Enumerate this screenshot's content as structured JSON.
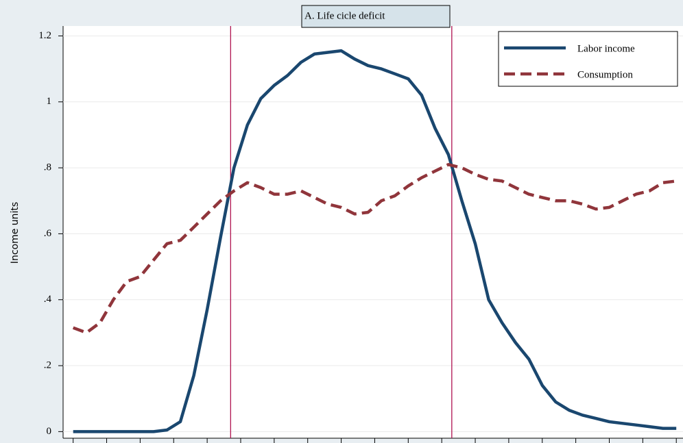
{
  "chart_data": {
    "type": "line",
    "title": "A. Life cicle deficit",
    "ylabel": "Income units",
    "x": [
      0,
      2,
      4,
      6,
      8,
      10,
      12,
      14,
      16,
      18,
      20,
      22,
      24,
      26,
      28,
      30,
      32,
      34,
      36,
      38,
      40,
      42,
      44,
      46,
      48,
      50,
      52,
      54,
      56,
      58,
      60,
      62,
      64,
      66,
      68,
      70,
      72,
      74,
      76,
      78,
      80,
      82,
      84,
      86,
      88,
      90
    ],
    "series": [
      {
        "name": "Labor income",
        "color": "#1a476f",
        "dash": false,
        "values": [
          0,
          0,
          0,
          0,
          0,
          0,
          0,
          0.005,
          0.03,
          0.17,
          0.37,
          0.59,
          0.8,
          0.93,
          1.01,
          1.05,
          1.08,
          1.12,
          1.145,
          1.15,
          1.155,
          1.13,
          1.11,
          1.1,
          1.085,
          1.07,
          1.02,
          0.92,
          0.84,
          0.7,
          0.57,
          0.4,
          0.33,
          0.27,
          0.22,
          0.14,
          0.09,
          0.065,
          0.05,
          0.04,
          0.03,
          0.025,
          0.02,
          0.015,
          0.01,
          0.01
        ]
      },
      {
        "name": "Consumption",
        "color": "#90353b",
        "dash": true,
        "values": [
          0.315,
          0.3,
          0.33,
          0.4,
          0.455,
          0.47,
          0.52,
          0.57,
          0.58,
          0.62,
          0.66,
          0.7,
          0.73,
          0.755,
          0.74,
          0.72,
          0.72,
          0.73,
          0.71,
          0.69,
          0.68,
          0.66,
          0.665,
          0.7,
          0.715,
          0.745,
          0.77,
          0.79,
          0.81,
          0.8,
          0.78,
          0.765,
          0.76,
          0.74,
          0.72,
          0.71,
          0.7,
          0.7,
          0.69,
          0.675,
          0.68,
          0.7,
          0.72,
          0.73,
          0.755,
          0.76
        ]
      }
    ],
    "xlines": [
      23.5,
      56.5
    ],
    "xline_color": "#b0114f",
    "xlim": [
      -1.5,
      91
    ],
    "xticks": [
      0,
      5,
      10,
      15,
      20,
      25,
      30,
      35,
      40,
      45,
      50,
      55,
      60,
      65,
      70,
      75,
      80,
      85,
      90
    ],
    "ylim": [
      -0.02,
      1.23
    ],
    "yticks": [
      0,
      {
        "value": 0.2,
        "label": ".2"
      },
      {
        "value": 0.4,
        "label": ".4"
      },
      {
        "value": 0.6,
        "label": ".6"
      },
      {
        "value": 0.8,
        "label": ".8"
      },
      1,
      {
        "value": 1.2,
        "label": "1.2"
      }
    ],
    "grid": true,
    "legend": "top-right"
  }
}
